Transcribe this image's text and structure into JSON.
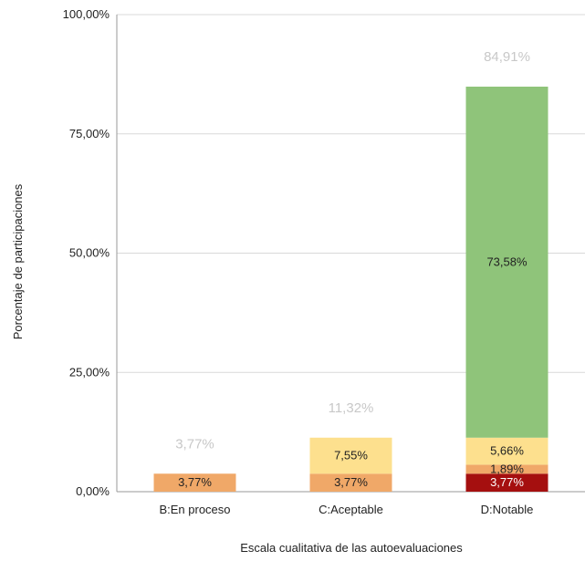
{
  "chart_data": {
    "type": "bar",
    "stacked": true,
    "xlabel": "Escala cualitativa de las autoevaluaciones",
    "ylabel": "Porcentaje de participaciones",
    "ylim": [
      0,
      100
    ],
    "yticks": [
      "0,00%",
      "25,00%",
      "50,00%",
      "75,00%",
      "100,00%"
    ],
    "ytick_values": [
      0,
      25,
      50,
      75,
      100
    ],
    "grid": true,
    "legend": "none",
    "categories": [
      "B:En proceso",
      "C:Aceptable",
      "D:Notable"
    ],
    "series": [
      {
        "color": "#a50f0f",
        "label_color": "#ffffff",
        "values": [
          0,
          0,
          3.77
        ],
        "labels": [
          "",
          "",
          "3,77%"
        ]
      },
      {
        "color": "#f0a868",
        "label_color": "#222222",
        "values": [
          3.77,
          3.77,
          1.89
        ],
        "labels": [
          "3,77%",
          "3,77%",
          "1,89%"
        ]
      },
      {
        "color": "#fde08e",
        "label_color": "#222222",
        "values": [
          0,
          7.55,
          5.66
        ],
        "labels": [
          "",
          "7,55%",
          "5,66%"
        ]
      },
      {
        "color": "#8fc47a",
        "label_color": "#222222",
        "values": [
          0,
          0,
          73.58
        ],
        "labels": [
          "",
          "",
          "73,58%"
        ]
      }
    ],
    "totals": [
      3.77,
      11.32,
      84.91
    ],
    "total_labels": [
      "3,77%",
      "11,32%",
      "84,91%"
    ]
  }
}
